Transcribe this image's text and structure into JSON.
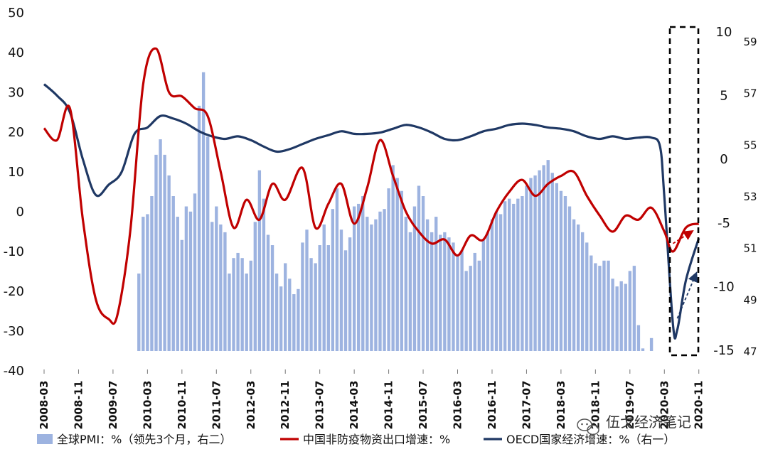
{
  "chart_data": {
    "type": "bar+line",
    "x_tick_labels": [
      "2008-03",
      "2008-11",
      "2009-07",
      "2010-03",
      "2010-11",
      "2011-07",
      "2012-03",
      "2012-11",
      "2013-07",
      "2014-03",
      "2014-11",
      "2015-07",
      "2016-03",
      "2016-11",
      "2017-07",
      "2018-03",
      "2018-11",
      "2019-07",
      "2020-03",
      "2020-11"
    ],
    "axes": {
      "left": {
        "ylim": [
          -40,
          50
        ],
        "ticks": [
          "50",
          "40",
          "30",
          "20",
          "10",
          "0",
          "-10",
          "-20",
          "-30",
          "-40"
        ]
      },
      "right1": {
        "ylim": [
          -15,
          10
        ],
        "ticks": [
          "10",
          "5",
          "0",
          "-5",
          "-10",
          "-15"
        ]
      },
      "right2": {
        "ylim": [
          47,
          59
        ],
        "ticks": [
          "59",
          "57",
          "55",
          "53",
          "51",
          "49",
          "47"
        ]
      }
    },
    "legend": [
      "全球PMI：%（领先3个月，右二）",
      "中国非防疫物资出口增速：%",
      "OECD国家经济增速：%（右一）"
    ],
    "colors": {
      "pmi": "#9DB3E0",
      "china": "#C00000",
      "oecd": "#1F3864"
    },
    "series": [
      {
        "name": "全球PMI：%（领先3个月，右二）",
        "axis": "right2",
        "kind": "bar",
        "x_start": "2010-01",
        "values": [
          50.0,
          52.2,
          52.3,
          53.0,
          54.6,
          55.2,
          54.6,
          53.8,
          53.0,
          52.2,
          51.3,
          52.6,
          52.4,
          53.1,
          56.5,
          57.8,
          55.3,
          52.0,
          52.6,
          51.9,
          51.6,
          50.0,
          50.6,
          50.8,
          50.6,
          50.0,
          50.5,
          52.0,
          54.0,
          52.9,
          51.5,
          51.1,
          50.0,
          49.5,
          50.4,
          49.8,
          49.2,
          49.4,
          51.2,
          51.7,
          50.6,
          50.4,
          51.1,
          51.9,
          51.1,
          52.5,
          53.3,
          51.7,
          50.9,
          51.4,
          52.6,
          52.7,
          53.0,
          52.2,
          51.9,
          52.1,
          52.4,
          52.5,
          53.3,
          54.2,
          53.7,
          53.2,
          52.2,
          51.6,
          52.6,
          53.4,
          53.0,
          52.1,
          51.6,
          52.2,
          51.5,
          51.6,
          51.4,
          51.2,
          50.7,
          50.9,
          50.1,
          50.3,
          50.8,
          50.5,
          51.3,
          51.6,
          52.1,
          52.4,
          52.3,
          52.8,
          52.9,
          52.7,
          52.9,
          53.0,
          53.4,
          53.7,
          53.8,
          54.0,
          54.2,
          54.4,
          53.9,
          53.5,
          53.2,
          53.0,
          52.6,
          52.1,
          51.9,
          51.6,
          51.2,
          50.7,
          50.4,
          50.3,
          50.5,
          50.5,
          49.8,
          49.5,
          49.7,
          49.6,
          50.1,
          50.3,
          48.0,
          47.1,
          47.0,
          47.5
        ]
      },
      {
        "name": "中国非防疫物资出口增速：%",
        "axis": "left",
        "kind": "line",
        "points": [
          [
            "2008-03",
            21
          ],
          [
            "2008-06",
            18
          ],
          [
            "2008-09",
            26
          ],
          [
            "2008-12",
            -2
          ],
          [
            "2009-03",
            -22
          ],
          [
            "2009-06",
            -27
          ],
          [
            "2009-08",
            -26
          ],
          [
            "2009-11",
            -5
          ],
          [
            "2010-02",
            32
          ],
          [
            "2010-05",
            41
          ],
          [
            "2010-08",
            30
          ],
          [
            "2010-11",
            29
          ],
          [
            "2011-02",
            26
          ],
          [
            "2011-05",
            24
          ],
          [
            "2011-08",
            10
          ],
          [
            "2011-11",
            -4
          ],
          [
            "2012-02",
            3
          ],
          [
            "2012-05",
            -2
          ],
          [
            "2012-08",
            7
          ],
          [
            "2012-11",
            3
          ],
          [
            "2013-03",
            11
          ],
          [
            "2013-06",
            -4
          ],
          [
            "2013-09",
            2
          ],
          [
            "2013-12",
            7
          ],
          [
            "2014-03",
            -3
          ],
          [
            "2014-06",
            6
          ],
          [
            "2014-09",
            18
          ],
          [
            "2014-12",
            9
          ],
          [
            "2015-03",
            0
          ],
          [
            "2015-06",
            -5
          ],
          [
            "2015-09",
            -8
          ],
          [
            "2015-12",
            -7
          ],
          [
            "2016-03",
            -11
          ],
          [
            "2016-06",
            -6
          ],
          [
            "2016-09",
            -7
          ],
          [
            "2016-12",
            0
          ],
          [
            "2017-03",
            5
          ],
          [
            "2017-06",
            8
          ],
          [
            "2017-09",
            4
          ],
          [
            "2017-12",
            7
          ],
          [
            "2018-03",
            9
          ],
          [
            "2018-06",
            10
          ],
          [
            "2018-09",
            4
          ],
          [
            "2018-12",
            -1
          ],
          [
            "2019-03",
            -5
          ],
          [
            "2019-06",
            -1
          ],
          [
            "2019-09",
            -2
          ],
          [
            "2019-12",
            1
          ],
          [
            "2020-03",
            -5
          ],
          [
            "2020-05",
            -10
          ],
          [
            "2020-08",
            -4
          ],
          [
            "2020-11",
            -3
          ]
        ]
      },
      {
        "name": "OECD国家经济增速：%（右一）",
        "axis": "right1",
        "kind": "line",
        "points": [
          [
            "2008-03",
            5.9
          ],
          [
            "2008-06",
            5.0
          ],
          [
            "2008-09",
            3.7
          ],
          [
            "2008-12",
            0.0
          ],
          [
            "2009-03",
            -2.8
          ],
          [
            "2009-06",
            -2.0
          ],
          [
            "2009-09",
            -1.0
          ],
          [
            "2009-12",
            2.0
          ],
          [
            "2010-03",
            2.5
          ],
          [
            "2010-06",
            3.4
          ],
          [
            "2010-09",
            3.2
          ],
          [
            "2010-12",
            2.8
          ],
          [
            "2011-03",
            2.2
          ],
          [
            "2011-06",
            1.8
          ],
          [
            "2011-09",
            1.6
          ],
          [
            "2011-12",
            1.8
          ],
          [
            "2012-03",
            1.5
          ],
          [
            "2012-06",
            1.0
          ],
          [
            "2012-09",
            0.6
          ],
          [
            "2012-12",
            0.8
          ],
          [
            "2013-03",
            1.2
          ],
          [
            "2013-06",
            1.6
          ],
          [
            "2013-09",
            1.9
          ],
          [
            "2013-12",
            2.2
          ],
          [
            "2014-03",
            2.0
          ],
          [
            "2014-06",
            2.0
          ],
          [
            "2014-09",
            2.1
          ],
          [
            "2014-12",
            2.4
          ],
          [
            "2015-03",
            2.7
          ],
          [
            "2015-06",
            2.5
          ],
          [
            "2015-09",
            2.1
          ],
          [
            "2015-12",
            1.6
          ],
          [
            "2016-03",
            1.5
          ],
          [
            "2016-06",
            1.8
          ],
          [
            "2016-09",
            2.2
          ],
          [
            "2016-12",
            2.4
          ],
          [
            "2017-03",
            2.7
          ],
          [
            "2017-06",
            2.8
          ],
          [
            "2017-09",
            2.7
          ],
          [
            "2017-12",
            2.5
          ],
          [
            "2018-03",
            2.4
          ],
          [
            "2018-06",
            2.2
          ],
          [
            "2018-09",
            1.8
          ],
          [
            "2018-12",
            1.6
          ],
          [
            "2019-03",
            1.8
          ],
          [
            "2019-06",
            1.6
          ],
          [
            "2019-09",
            1.7
          ],
          [
            "2019-12",
            1.7
          ],
          [
            "2020-02",
            1.0
          ],
          [
            "2020-03",
            -3.0
          ],
          [
            "2020-05",
            -13.0
          ],
          [
            "2020-06",
            -13.4
          ],
          [
            "2020-08",
            -9.5
          ],
          [
            "2020-11",
            -6.2
          ]
        ]
      }
    ],
    "forecast_arrows": [
      {
        "color": "#C00000",
        "from": [
          "2020-05",
          -8
        ],
        "to": [
          "2020-10",
          -5
        ]
      },
      {
        "color": "#1F3864",
        "from": [
          "2020-06",
          -12.5
        ],
        "to": [
          "2020-11",
          -9.0
        ]
      }
    ]
  },
  "watermark": {
    "icon": "wechat-icon",
    "text": "伍戈经济笔记"
  }
}
